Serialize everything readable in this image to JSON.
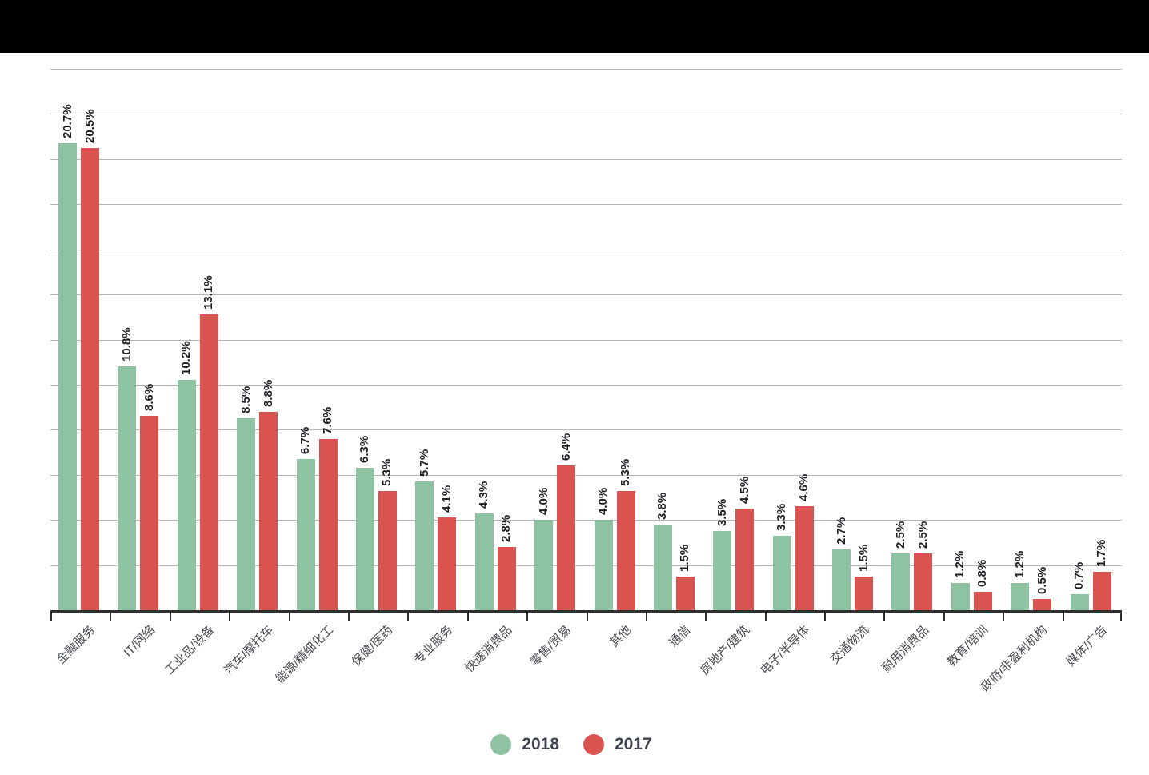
{
  "header": {
    "bar_color": "#000000"
  },
  "legend": {
    "items": [
      {
        "label": "2018",
        "color": "#8ec3a2"
      },
      {
        "label": "2017",
        "color": "#d95351"
      }
    ]
  },
  "chart_data": {
    "type": "bar",
    "categories": [
      "金融服务",
      "IT/网络",
      "工业品/设备",
      "汽车/摩托车",
      "能源/精细化工",
      "保健/医药",
      "专业服务",
      "快速消费品",
      "零售/贸易",
      "其他",
      "通信",
      "房地产/建筑",
      "电子/半导体",
      "交通物流",
      "耐用消费品",
      "教育/培训",
      "政府/非盈利机构",
      "媒体/广告"
    ],
    "series": [
      {
        "name": "2018",
        "color": "#8ec3a2",
        "values": [
          20.7,
          10.8,
          10.2,
          8.5,
          6.7,
          6.3,
          5.7,
          4.3,
          4.0,
          4.0,
          3.8,
          3.5,
          3.3,
          2.7,
          2.5,
          1.2,
          1.2,
          0.7
        ]
      },
      {
        "name": "2017",
        "color": "#d95351",
        "values": [
          20.5,
          8.6,
          13.1,
          8.8,
          7.6,
          5.3,
          4.1,
          2.8,
          6.4,
          5.3,
          1.5,
          4.5,
          4.6,
          1.5,
          2.5,
          0.8,
          0.5,
          1.7
        ]
      }
    ],
    "value_label_format": "{value}%",
    "ylim": [
      0,
      24
    ],
    "grid_step": 2,
    "grid": true,
    "y_tick_labels_visible": false,
    "legend_position": "bottom",
    "bar_label_rotation": 90,
    "category_label_rotation": 45,
    "colors": {
      "gridline": "#b5b5b5",
      "axis": "#2f2f2f",
      "value_label": "#1f2024",
      "category_label": "#45484d",
      "background": "#ffffff"
    }
  }
}
